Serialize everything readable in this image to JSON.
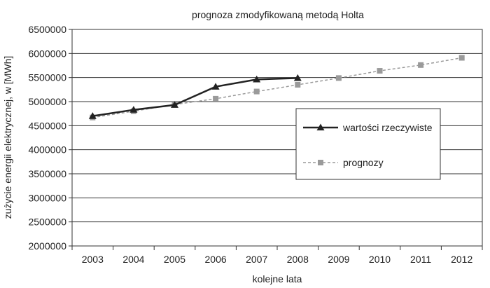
{
  "chart_data": {
    "type": "line",
    "title": "prognoza zmodyfikowaną metodą Holta",
    "xlabel": "kolejne lata",
    "ylabel": "zużycie energii elektrycznej, w [MWh]",
    "categories": [
      "2003",
      "2004",
      "2005",
      "2006",
      "2007",
      "2008",
      "2009",
      "2010",
      "2011",
      "2012"
    ],
    "ylim": [
      2000000,
      6500000
    ],
    "yticks": [
      2000000,
      2500000,
      3000000,
      3500000,
      4000000,
      4500000,
      5000000,
      5500000,
      6000000,
      6500000
    ],
    "ytick_labels": [
      "2000000",
      "2500000",
      "3000000",
      "3500000",
      "4000000",
      "4500000",
      "5000000",
      "5500000",
      "6000000",
      "6500000"
    ],
    "grid": "horizontal",
    "legend_position": "right",
    "series": [
      {
        "name": "wartości rzeczywiste",
        "color": "#222222",
        "marker": "triangle",
        "line_style": "solid",
        "values": [
          4700000,
          4830000,
          4930000,
          5310000,
          5460000,
          5490000,
          null,
          null,
          null,
          null
        ]
      },
      {
        "name": "prognozy",
        "color": "#9a9a9a",
        "marker": "square",
        "line_style": "dashed",
        "values": [
          4670000,
          4800000,
          4940000,
          5060000,
          5210000,
          5350000,
          5490000,
          5640000,
          5760000,
          5910000
        ]
      }
    ]
  }
}
